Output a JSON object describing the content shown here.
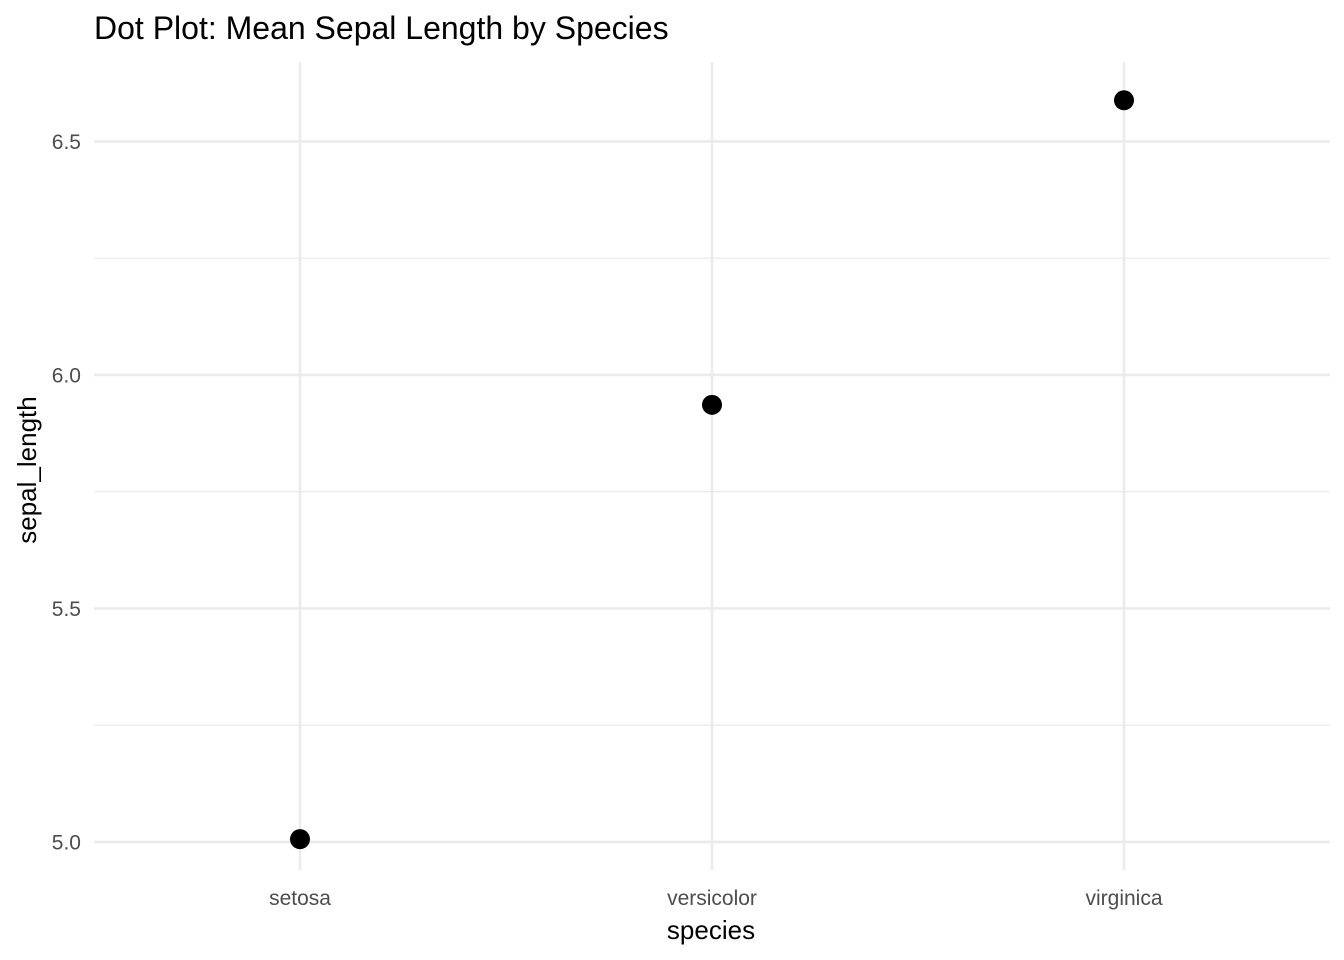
{
  "chart_data": {
    "type": "scatter",
    "title": "Dot Plot: Mean Sepal Length by Species",
    "xlabel": "species",
    "ylabel": "sepal_length",
    "categories": [
      "setosa",
      "versicolor",
      "virginica"
    ],
    "values": [
      5.006,
      5.936,
      6.588
    ],
    "ylim": [
      4.94,
      6.67
    ],
    "yticks": [
      "5.0",
      "5.5",
      "6.0",
      "6.5"
    ],
    "grid": true,
    "legend": "none",
    "point_color": "#000000",
    "grid_color": "#ebebeb"
  }
}
